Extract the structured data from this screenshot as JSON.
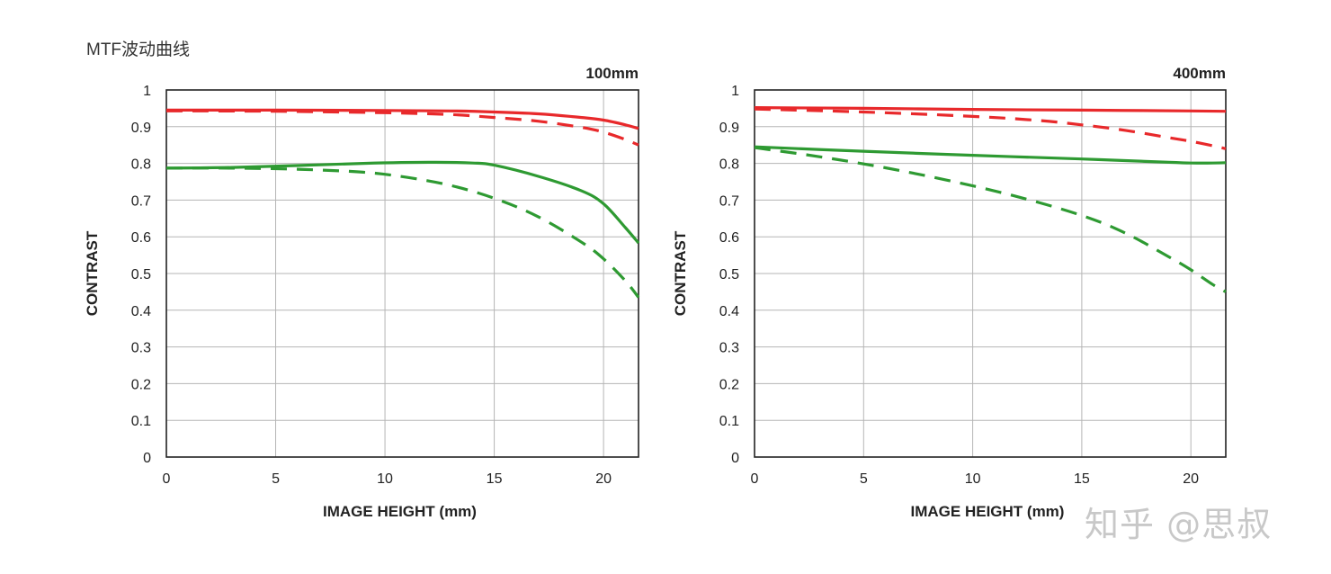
{
  "page_title": "MTF波动曲线",
  "watermark": "知乎 @思叔",
  "colors": {
    "sagittal_like": "#e8292b",
    "meridional_like": "#2e9a32",
    "grid": "#b5b5b5",
    "axis": "#222222"
  },
  "chart_data": [
    {
      "type": "line",
      "title": "100mm",
      "xlabel": "IMAGE HEIGHT (mm)",
      "ylabel": "CONTRAST",
      "xlim": [
        0,
        21.6
      ],
      "ylim": [
        0,
        1
      ],
      "xticks": [
        0,
        5,
        10,
        15,
        20
      ],
      "yticks": [
        0,
        0.1,
        0.2,
        0.3,
        0.4,
        0.5,
        0.6,
        0.7,
        0.8,
        0.9,
        1
      ],
      "grid": true,
      "series": [
        {
          "color": "#e8292b",
          "style": "solid",
          "x": [
            0,
            5,
            10,
            13,
            15,
            17,
            19,
            20,
            21,
            21.6
          ],
          "y": [
            0.945,
            0.945,
            0.944,
            0.943,
            0.94,
            0.935,
            0.925,
            0.918,
            0.905,
            0.895
          ]
        },
        {
          "color": "#e8292b",
          "style": "dashed",
          "x": [
            0,
            5,
            10,
            13,
            15,
            17,
            19,
            20,
            21,
            21.6
          ],
          "y": [
            0.943,
            0.942,
            0.938,
            0.933,
            0.925,
            0.915,
            0.898,
            0.885,
            0.865,
            0.85
          ]
        },
        {
          "color": "#2e9a32",
          "style": "solid",
          "x": [
            0,
            3,
            6,
            9,
            12,
            14,
            15,
            17,
            19,
            20,
            21,
            21.6
          ],
          "y": [
            0.787,
            0.789,
            0.794,
            0.8,
            0.803,
            0.801,
            0.795,
            0.765,
            0.725,
            0.69,
            0.625,
            0.583
          ]
        },
        {
          "color": "#2e9a32",
          "style": "dashed",
          "x": [
            0,
            3,
            6,
            9,
            11,
            13,
            15,
            17,
            19,
            20,
            21,
            21.6
          ],
          "y": [
            0.787,
            0.787,
            0.784,
            0.776,
            0.762,
            0.74,
            0.705,
            0.655,
            0.585,
            0.54,
            0.48,
            0.435
          ]
        }
      ]
    },
    {
      "type": "line",
      "title": "400mm",
      "xlabel": "IMAGE HEIGHT (mm)",
      "ylabel": "CONTRAST",
      "xlim": [
        0,
        21.6
      ],
      "ylim": [
        0,
        1
      ],
      "xticks": [
        0,
        5,
        10,
        15,
        20
      ],
      "yticks": [
        0,
        0.1,
        0.2,
        0.3,
        0.4,
        0.5,
        0.6,
        0.7,
        0.8,
        0.9,
        1
      ],
      "grid": true,
      "series": [
        {
          "color": "#e8292b",
          "style": "solid",
          "x": [
            0,
            5,
            10,
            15,
            20,
            21.6
          ],
          "y": [
            0.952,
            0.95,
            0.947,
            0.945,
            0.943,
            0.942
          ]
        },
        {
          "color": "#e8292b",
          "style": "dashed",
          "x": [
            0,
            5,
            10,
            13,
            15,
            17,
            19,
            20,
            21,
            21.6
          ],
          "y": [
            0.948,
            0.94,
            0.928,
            0.917,
            0.905,
            0.89,
            0.87,
            0.86,
            0.848,
            0.84
          ]
        },
        {
          "color": "#2e9a32",
          "style": "solid",
          "x": [
            0,
            5,
            10,
            15,
            19,
            20,
            21,
            21.6
          ],
          "y": [
            0.845,
            0.833,
            0.822,
            0.812,
            0.803,
            0.801,
            0.801,
            0.802
          ]
        },
        {
          "color": "#2e9a32",
          "style": "dashed",
          "x": [
            0,
            3,
            6,
            9,
            12,
            15,
            17,
            19,
            20,
            21,
            21.6
          ],
          "y": [
            0.843,
            0.818,
            0.788,
            0.752,
            0.71,
            0.658,
            0.61,
            0.545,
            0.51,
            0.47,
            0.45
          ]
        }
      ]
    }
  ]
}
